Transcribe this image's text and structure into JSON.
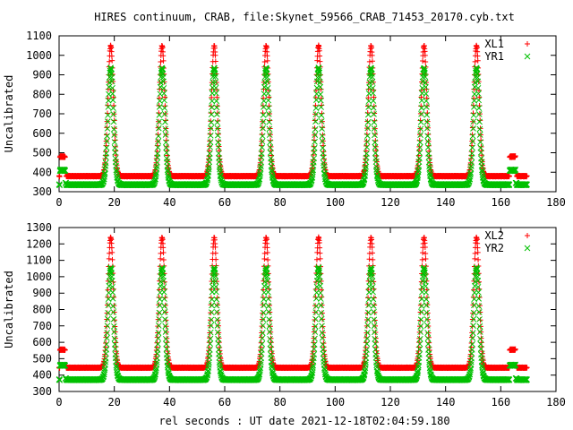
{
  "title": "HIRES continuum, CRAB, file:Skynet_59566_CRAB_71453_20170.cyb.txt",
  "xlabel": "rel seconds : UT date 2021-12-18T02:04:59.180",
  "colors": {
    "red": "#ff0000",
    "green": "#00c000",
    "axis": "#000000"
  },
  "chart_data": [
    {
      "type": "scatter",
      "ylabel": "Uncalibrated",
      "xlim": [
        0,
        180
      ],
      "ylim": [
        300,
        1100
      ],
      "xticks": [
        0,
        20,
        40,
        60,
        80,
        100,
        120,
        140,
        160,
        180
      ],
      "yticks": [
        300,
        400,
        500,
        600,
        700,
        800,
        900,
        1000,
        1100
      ],
      "legend_position": "top-right",
      "x_end": 169.5,
      "cal_segments": [
        [
          0.3,
          2.2
        ],
        [
          163.2,
          165.3
        ]
      ],
      "scan_starts": [
        2.3,
        165.5
      ],
      "peaks": [
        18.7,
        37.3,
        56.2,
        75.0,
        94.0,
        113.0,
        132.2,
        151.2
      ],
      "peak_width": 1.4,
      "series": [
        {
          "name": "XL1",
          "marker": "plus",
          "color": "#ff0000",
          "baseline": 380,
          "peak": 1050,
          "cal": 480,
          "scan_start": 395
        },
        {
          "name": "YR1",
          "marker": "cross",
          "color": "#00c000",
          "baseline": 336,
          "peak": 935,
          "cal": 410,
          "scan_start": 345
        }
      ]
    },
    {
      "type": "scatter",
      "ylabel": "Uncalibrated",
      "xlim": [
        0,
        180
      ],
      "ylim": [
        300,
        1300
      ],
      "xticks": [
        0,
        20,
        40,
        60,
        80,
        100,
        120,
        140,
        160,
        180
      ],
      "yticks": [
        300,
        400,
        500,
        600,
        700,
        800,
        900,
        1000,
        1100,
        1200,
        1300
      ],
      "legend_position": "top-right",
      "x_end": 169.5,
      "cal_segments": [
        [
          0.3,
          2.2
        ],
        [
          163.2,
          165.3
        ]
      ],
      "scan_starts": [
        2.3,
        165.5
      ],
      "peaks": [
        18.7,
        37.3,
        56.2,
        75.0,
        94.0,
        113.0,
        132.2,
        151.2
      ],
      "peak_width": 1.4,
      "series": [
        {
          "name": "XL2",
          "marker": "plus",
          "color": "#ff0000",
          "baseline": 445,
          "peak": 1240,
          "cal": 555,
          "scan_start": 455
        },
        {
          "name": "YR2",
          "marker": "cross",
          "color": "#00c000",
          "baseline": 372,
          "peak": 1055,
          "cal": 460,
          "scan_start": 380
        }
      ]
    }
  ]
}
